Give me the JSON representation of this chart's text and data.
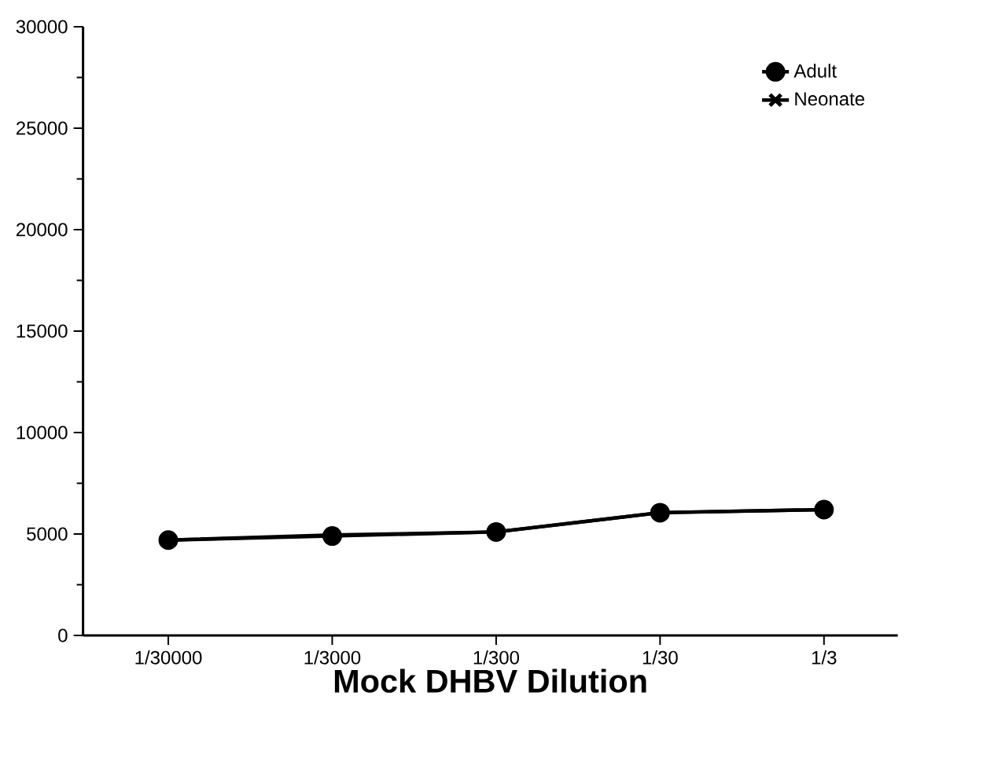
{
  "chart_data": {
    "type": "line",
    "xlabel": "Mock DHBV Dilution",
    "categories": [
      "1/30000",
      "1/3000",
      "1/300",
      "1/30",
      "1/3"
    ],
    "series": [
      {
        "name": "Neonate",
        "color": "#000000",
        "marker": "cross",
        "values": [
          4700,
          4950,
          5100,
          6050,
          6200
        ]
      },
      {
        "name": "Adult",
        "color": "#000000",
        "marker": "circle",
        "values": [
          4700,
          4900,
          5100,
          6050,
          6200
        ]
      }
    ],
    "ylim": [
      0,
      30000
    ],
    "yticks": [
      0,
      5000,
      10000,
      15000,
      20000,
      25000,
      30000
    ],
    "grid": false,
    "legend": "top right",
    "line_style": "solid"
  }
}
